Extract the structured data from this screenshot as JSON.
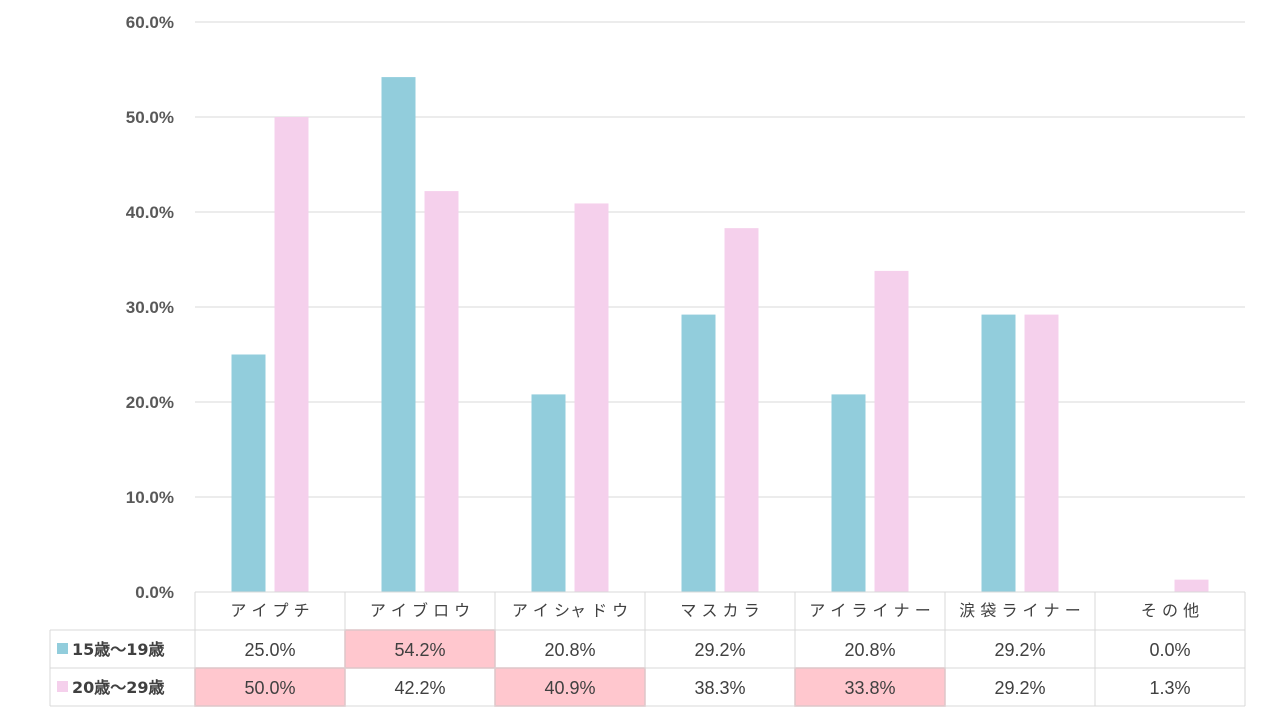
{
  "chart_data": {
    "type": "bar",
    "categories": [
      "ア イ プ チ",
      "ア イ ブ ロ ウ",
      "ア イ シャ ド ウ",
      "マ ス カ ラ",
      "ア イ ラ イ ナ ー",
      "涙 袋 ラ イ ナ ー",
      "そ の 他"
    ],
    "series": [
      {
        "name": "15歳～19歳",
        "color": "#92CDDC",
        "values": [
          25.0,
          54.2,
          20.8,
          29.2,
          20.8,
          29.2,
          0.0
        ],
        "labels": [
          "25.0%",
          "54.2%",
          "20.8%",
          "29.2%",
          "20.8%",
          "29.2%",
          "0.0%"
        ],
        "highlighted": [
          false,
          true,
          false,
          false,
          false,
          false,
          false
        ]
      },
      {
        "name": "20歳～29歳",
        "color": "#F5D0EC",
        "values": [
          50.0,
          42.2,
          40.9,
          38.3,
          33.8,
          29.2,
          1.3
        ],
        "labels": [
          "50.0%",
          "42.2%",
          "40.9%",
          "38.3%",
          "33.8%",
          "29.2%",
          "1.3%"
        ],
        "highlighted": [
          true,
          false,
          true,
          false,
          true,
          false,
          false
        ]
      }
    ],
    "yticks": [
      "0.0%",
      "10.0%",
      "20.0%",
      "30.0%",
      "40.0%",
      "50.0%",
      "60.0%"
    ],
    "ylim": [
      0,
      60
    ],
    "grid": true,
    "legend": "data-table",
    "highlight_color": "#FFC7CE"
  }
}
